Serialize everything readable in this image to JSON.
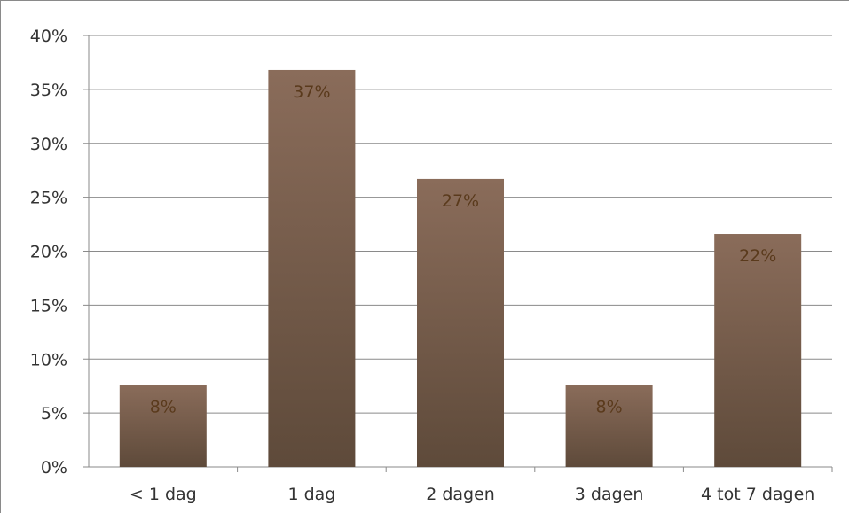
{
  "chart_data": {
    "type": "bar",
    "categories": [
      "< 1 dag",
      "1 dag",
      "2 dagen",
      "3 dagen",
      "4 tot 7 dagen"
    ],
    "values": [
      7.6,
      36.8,
      26.7,
      7.6,
      21.6
    ],
    "data_labels": [
      "8%",
      "37%",
      "27%",
      "8%",
      "22%"
    ],
    "y_ticks": [
      "0%",
      "5%",
      "10%",
      "15%",
      "20%",
      "25%",
      "30%",
      "35%",
      "40%"
    ],
    "ylim": [
      0,
      40
    ],
    "title": "",
    "xlabel": "",
    "ylabel": "",
    "grid": true,
    "legend": "none",
    "colors": {
      "bar_top": "#8a6c5a",
      "bar_bottom": "#5e4a3a",
      "gridline": "#8a8a8a",
      "data_label": "#5a3a1c",
      "tick_label": "#333333"
    }
  }
}
